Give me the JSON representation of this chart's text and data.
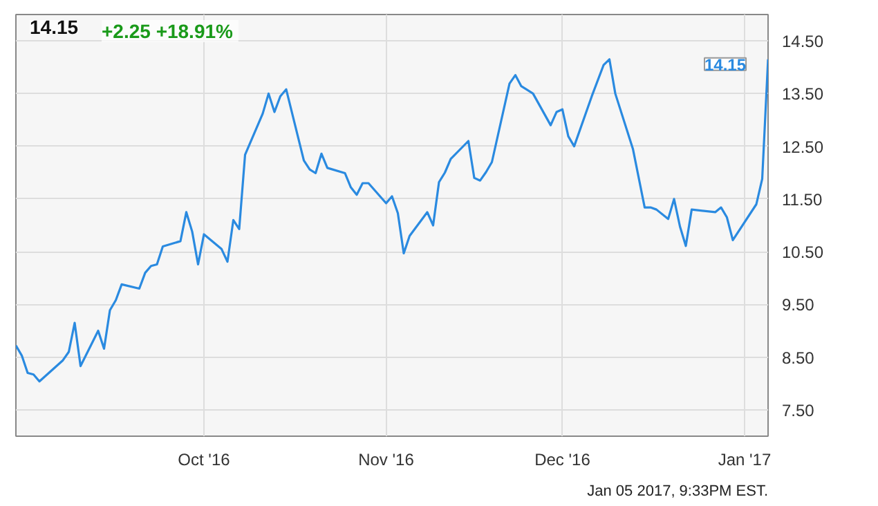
{
  "chart_data": {
    "type": "line",
    "title": "14.15",
    "subtitle": "+2.25  +18.91%",
    "x": [
      "2016-08-30",
      "2016-08-31",
      "2016-09-01",
      "2016-09-02",
      "2016-09-03",
      "2016-09-07",
      "2016-09-08",
      "2016-09-09",
      "2016-09-10",
      "2016-09-13",
      "2016-09-14",
      "2016-09-15",
      "2016-09-16",
      "2016-09-17",
      "2016-09-20",
      "2016-09-21",
      "2016-09-22",
      "2016-09-23",
      "2016-09-24",
      "2016-09-27",
      "2016-09-28",
      "2016-09-29",
      "2016-09-30",
      "2016-10-01",
      "2016-10-04",
      "2016-10-05",
      "2016-10-06",
      "2016-10-07",
      "2016-10-08",
      "2016-10-11",
      "2016-10-12",
      "2016-10-13",
      "2016-10-14",
      "2016-10-15",
      "2016-10-18",
      "2016-10-19",
      "2016-10-20",
      "2016-10-21",
      "2016-10-22",
      "2016-10-25",
      "2016-10-26",
      "2016-10-27",
      "2016-10-28",
      "2016-10-29",
      "2016-11-01",
      "2016-11-02",
      "2016-11-03",
      "2016-11-04",
      "2016-11-05",
      "2016-11-08",
      "2016-11-09",
      "2016-11-10",
      "2016-11-11",
      "2016-11-12",
      "2016-11-15",
      "2016-11-16",
      "2016-11-17",
      "2016-11-18",
      "2016-11-19",
      "2016-11-22",
      "2016-11-23",
      "2016-11-24",
      "2016-11-26",
      "2016-11-29",
      "2016-11-30",
      "2016-12-01",
      "2016-12-02",
      "2016-12-03",
      "2016-12-06",
      "2016-12-08",
      "2016-12-09",
      "2016-12-10",
      "2016-12-13",
      "2016-12-15",
      "2016-12-16",
      "2016-12-17",
      "2016-12-19",
      "2016-12-20",
      "2016-12-21",
      "2016-12-22",
      "2016-12-23",
      "2016-12-27",
      "2016-12-28",
      "2016-12-29",
      "2016-12-30",
      "2017-01-03",
      "2017-01-04",
      "2017-01-05"
    ],
    "series": [
      {
        "color": "#2a8ae0",
        "values": [
          8.72,
          8.53,
          8.2,
          8.17,
          8.04,
          8.44,
          8.6,
          9.15,
          8.33,
          9.0,
          8.66,
          9.39,
          9.58,
          9.88,
          9.8,
          10.1,
          10.23,
          10.26,
          10.6,
          10.7,
          11.25,
          10.88,
          10.26,
          10.83,
          10.55,
          10.31,
          11.1,
          10.93,
          12.34,
          13.12,
          13.5,
          13.15,
          13.45,
          13.58,
          12.23,
          12.06,
          11.99,
          12.36,
          12.09,
          11.99,
          11.72,
          11.58,
          11.8,
          11.8,
          11.42,
          11.55,
          11.23,
          10.47,
          10.8,
          11.25,
          11.0,
          11.82,
          12.0,
          12.26,
          12.6,
          11.9,
          11.85,
          12.01,
          12.2,
          13.69,
          13.85,
          13.64,
          13.5,
          12.9,
          13.15,
          13.2,
          12.69,
          12.5,
          13.45,
          14.04,
          14.15,
          13.5,
          12.45,
          11.34,
          11.34,
          11.3,
          11.12,
          11.5,
          10.98,
          10.61,
          11.3,
          11.25,
          11.34,
          11.15,
          10.72,
          11.4,
          11.88,
          14.15
        ]
      }
    ],
    "xlim": [
      "2016-08-30",
      "2017-01-05"
    ],
    "xticks": [
      {
        "value": "2016-10-01",
        "label": "Oct '16"
      },
      {
        "value": "2016-11-01",
        "label": "Nov '16"
      },
      {
        "value": "2016-12-01",
        "label": "Dec '16"
      },
      {
        "value": "2017-01-01",
        "label": "Jan '17"
      }
    ],
    "ylim": [
      7.0,
      15.0
    ],
    "yticks": [
      {
        "value": 7.5,
        "label": "7.50"
      },
      {
        "value": 8.5,
        "label": "8.50"
      },
      {
        "value": 9.5,
        "label": "9.50"
      },
      {
        "value": 10.5,
        "label": "10.50"
      },
      {
        "value": 11.5,
        "label": "11.50"
      },
      {
        "value": 12.5,
        "label": "12.50"
      },
      {
        "value": 13.5,
        "label": "13.50"
      },
      {
        "value": 14.5,
        "label": "14.50"
      }
    ],
    "grid": true,
    "marker": "none",
    "line_style": "solid",
    "annotations": [
      {
        "text": "14.15",
        "x": "2017-01-05",
        "y": 14.15
      },
      "Jan 05 2017, 9:33PM EST."
    ]
  }
}
